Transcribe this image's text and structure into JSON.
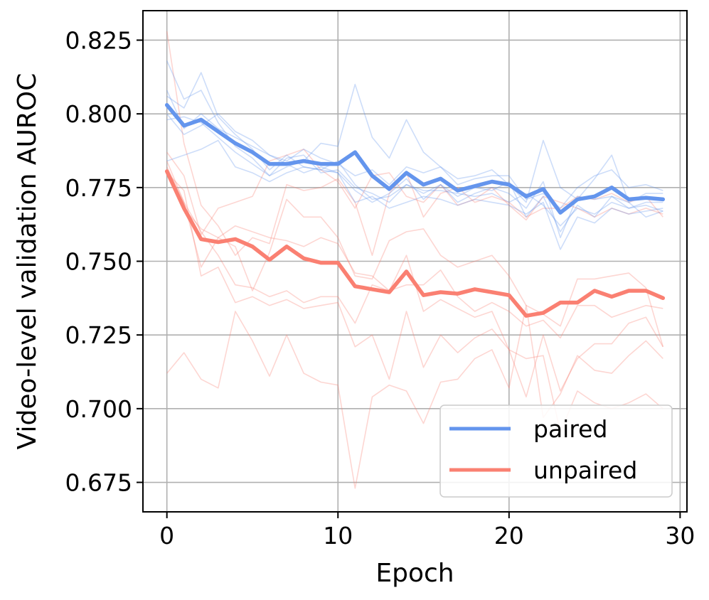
{
  "chart_data": {
    "type": "line",
    "xlabel": "Epoch",
    "ylabel": "Video-level validation AUROC",
    "xlim": [
      -1.4,
      30.4
    ],
    "ylim": [
      0.665,
      0.835
    ],
    "xticks": [
      0,
      10,
      20,
      30
    ],
    "xtick_labels": [
      "0",
      "10",
      "20",
      "30"
    ],
    "yticks": [
      0.675,
      0.7,
      0.725,
      0.75,
      0.775,
      0.8,
      0.825
    ],
    "ytick_labels": [
      "0.675",
      "0.700",
      "0.725",
      "0.750",
      "0.775",
      "0.800",
      "0.825"
    ],
    "grid": true,
    "legend_position": "lower-right",
    "colors": {
      "paired": "#6495ed",
      "unpaired": "#fa8072"
    },
    "x": [
      0,
      1,
      2,
      3,
      4,
      5,
      6,
      7,
      8,
      9,
      10,
      11,
      12,
      13,
      14,
      15,
      16,
      17,
      18,
      19,
      20,
      21,
      22,
      23,
      24,
      25,
      26,
      27,
      28,
      29
    ],
    "series": [
      {
        "name": "paired",
        "color": "#6495ed",
        "values": [
          0.803,
          0.796,
          0.798,
          0.794,
          0.79,
          0.787,
          0.783,
          0.783,
          0.784,
          0.783,
          0.783,
          0.787,
          0.779,
          0.7745,
          0.78,
          0.776,
          0.778,
          0.774,
          0.7755,
          0.777,
          0.776,
          0.772,
          0.7745,
          0.7665,
          0.771,
          0.772,
          0.775,
          0.771,
          0.7715,
          0.771
        ],
        "runs": [
          [
            0.818,
            0.805,
            0.808,
            0.797,
            0.789,
            0.785,
            0.779,
            0.782,
            0.784,
            0.79,
            0.789,
            0.81,
            0.792,
            0.785,
            0.798,
            0.787,
            0.782,
            0.778,
            0.779,
            0.781,
            0.776,
            0.77,
            0.791,
            0.775,
            0.771,
            0.778,
            0.786,
            0.77,
            0.773,
            0.773
          ],
          [
            0.806,
            0.802,
            0.814,
            0.799,
            0.793,
            0.788,
            0.781,
            0.786,
            0.782,
            0.781,
            0.784,
            0.776,
            0.771,
            0.772,
            0.776,
            0.773,
            0.776,
            0.77,
            0.773,
            0.775,
            0.773,
            0.768,
            0.777,
            0.758,
            0.772,
            0.771,
            0.772,
            0.768,
            0.769,
            0.767
          ],
          [
            0.8,
            0.793,
            0.796,
            0.8,
            0.794,
            0.791,
            0.786,
            0.784,
            0.788,
            0.785,
            0.783,
            0.779,
            0.781,
            0.776,
            0.782,
            0.78,
            0.782,
            0.776,
            0.778,
            0.779,
            0.779,
            0.771,
            0.773,
            0.768,
            0.775,
            0.779,
            0.781,
            0.775,
            0.776,
            0.774
          ],
          [
            0.798,
            0.799,
            0.797,
            0.792,
            0.787,
            0.783,
            0.779,
            0.785,
            0.786,
            0.78,
            0.781,
            0.775,
            0.773,
            0.77,
            0.776,
            0.774,
            0.774,
            0.773,
            0.772,
            0.773,
            0.77,
            0.773,
            0.769,
            0.762,
            0.768,
            0.766,
            0.77,
            0.768,
            0.77,
            0.77
          ],
          [
            0.784,
            0.786,
            0.788,
            0.791,
            0.782,
            0.78,
            0.777,
            0.78,
            0.782,
            0.781,
            0.78,
            0.77,
            0.772,
            0.768,
            0.77,
            0.772,
            0.771,
            0.769,
            0.771,
            0.77,
            0.769,
            0.766,
            0.77,
            0.754,
            0.765,
            0.763,
            0.768,
            0.766,
            0.767,
            0.768
          ],
          [
            0.808,
            0.795,
            0.8,
            0.795,
            0.792,
            0.789,
            0.786,
            0.783,
            0.78,
            0.782,
            0.78,
            0.774,
            0.77,
            0.773,
            0.778,
            0.771,
            0.776,
            0.772,
            0.775,
            0.774,
            0.777,
            0.765,
            0.772,
            0.76,
            0.769,
            0.765,
            0.772,
            0.77,
            0.765,
            0.767
          ]
        ]
      },
      {
        "name": "unpaired",
        "color": "#fa8072",
        "values": [
          0.7805,
          0.768,
          0.7575,
          0.7565,
          0.7575,
          0.755,
          0.7505,
          0.755,
          0.751,
          0.7495,
          0.7495,
          0.7415,
          0.7405,
          0.7395,
          0.7465,
          0.7385,
          0.7395,
          0.739,
          0.7405,
          0.7395,
          0.7385,
          0.7315,
          0.7325,
          0.736,
          0.736,
          0.74,
          0.738,
          0.74,
          0.74,
          0.7375
        ],
        "runs": [
          [
            0.828,
            0.79,
            0.769,
            0.762,
            0.752,
            0.758,
            0.756,
            0.776,
            0.774,
            0.775,
            0.778,
            0.77,
            0.752,
            0.773,
            0.78,
            0.765,
            0.773,
            0.775,
            0.77,
            0.772,
            0.77,
            0.765,
            0.768,
            0.768,
            0.772,
            0.771,
            0.773,
            0.77,
            0.772,
            0.765
          ],
          [
            0.787,
            0.779,
            0.759,
            0.768,
            0.77,
            0.772,
            0.784,
            0.786,
            0.788,
            0.781,
            0.777,
            0.768,
            0.779,
            0.78,
            0.772,
            0.77,
            0.776,
            0.769,
            0.771,
            0.775,
            0.769,
            0.764,
            0.772,
            0.77,
            0.768,
            0.765,
            0.768,
            0.766,
            0.768,
            0.766
          ],
          [
            0.784,
            0.77,
            0.748,
            0.758,
            0.755,
            0.74,
            0.753,
            0.771,
            0.765,
            0.765,
            0.758,
            0.745,
            0.744,
            0.757,
            0.76,
            0.761,
            0.752,
            0.748,
            0.75,
            0.752,
            0.745,
            0.735,
            0.732,
            0.728,
            0.744,
            0.744,
            0.745,
            0.746,
            0.741,
            0.721
          ],
          [
            0.782,
            0.77,
            0.76,
            0.752,
            0.742,
            0.741,
            0.738,
            0.74,
            0.736,
            0.738,
            0.738,
            0.729,
            0.742,
            0.74,
            0.742,
            0.742,
            0.747,
            0.738,
            0.733,
            0.736,
            0.733,
            0.728,
            0.73,
            0.724,
            0.735,
            0.735,
            0.731,
            0.733,
            0.735,
            0.734
          ],
          [
            0.712,
            0.719,
            0.71,
            0.707,
            0.733,
            0.723,
            0.711,
            0.725,
            0.712,
            0.709,
            0.708,
            0.673,
            0.704,
            0.708,
            0.706,
            0.695,
            0.709,
            0.71,
            0.717,
            0.72,
            0.707,
            0.735,
            0.697,
            0.705,
            0.718,
            0.713,
            0.712,
            0.718,
            0.723,
            0.717
          ],
          [
            0.78,
            0.774,
            0.745,
            0.748,
            0.736,
            0.738,
            0.735,
            0.737,
            0.734,
            0.735,
            0.736,
            0.721,
            0.725,
            0.71,
            0.733,
            0.714,
            0.725,
            0.719,
            0.724,
            0.727,
            0.72,
            0.704,
            0.725,
            0.706,
            0.717,
            0.722,
            0.722,
            0.729,
            0.731,
            0.721
          ],
          [
            0.781,
            0.768,
            0.761,
            0.758,
            0.762,
            0.76,
            0.758,
            0.757,
            0.755,
            0.758,
            0.756,
            0.746,
            0.745,
            0.74,
            0.752,
            0.733,
            0.737,
            0.734,
            0.731,
            0.733,
            0.72,
            0.717,
            0.718,
            0.692,
            0.706,
            0.702,
            0.7,
            0.702,
            0.705,
            0.7
          ]
        ]
      }
    ]
  }
}
